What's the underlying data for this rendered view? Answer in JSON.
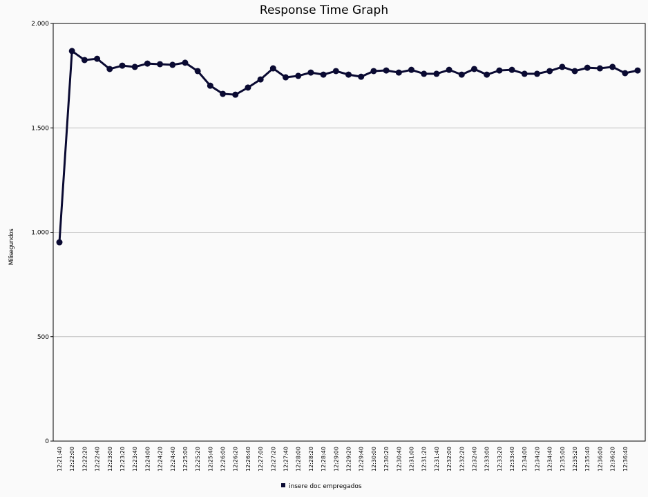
{
  "chart_data": {
    "type": "line",
    "title": "Response Time Graph",
    "y_label": "Milisegundos",
    "categories": [
      "12:21:40",
      "12:22:00",
      "12:22:20",
      "12:22:40",
      "12:23:00",
      "12:23:20",
      "12:23:40",
      "12:24:00",
      "12:24:20",
      "12:24:40",
      "12:25:00",
      "12:25:20",
      "12:25:40",
      "12:26:00",
      "12:26:20",
      "12:26:40",
      "12:27:00",
      "12:27:20",
      "12:27:40",
      "12:28:00",
      "12:28:20",
      "12:28:40",
      "12:29:00",
      "12:29:20",
      "12:29:40",
      "12:30:00",
      "12:30:20",
      "12:30:40",
      "12:31:00",
      "12:31:20",
      "12:31:40",
      "12:32:00",
      "12:32:20",
      "12:32:40",
      "12:33:00",
      "12:33:20",
      "12:33:40",
      "12:34:00",
      "12:34:20",
      "12:34:40",
      "12:35:00",
      "12:35:20",
      "12:35:40",
      "12:36:00",
      "12:36:20",
      "12:36:40",
      null
    ],
    "series": [
      {
        "name": "insere doc empregados",
        "color": "#0a0a32",
        "values": [
          952,
          1868,
          1825,
          1831,
          1782,
          1798,
          1792,
          1808,
          1805,
          1802,
          1812,
          1772,
          1702,
          1663,
          1659,
          1693,
          1732,
          1785,
          1742,
          1749,
          1765,
          1755,
          1772,
          1755,
          1745,
          1772,
          1775,
          1765,
          1778,
          1759,
          1759,
          1778,
          1755,
          1782,
          1755,
          1775,
          1778,
          1759,
          1759,
          1772,
          1792,
          1772,
          1788,
          1785,
          1792,
          1762,
          1775
        ]
      }
    ],
    "ylim": [
      0,
      2000
    ],
    "yticks": [
      0,
      500,
      {
        "value": 1000,
        "label": "1.000"
      },
      {
        "value": 1500,
        "label": "1.500"
      },
      {
        "value": 2000,
        "label": "2.000"
      }
    ],
    "grid": true,
    "legend": "bottom"
  }
}
